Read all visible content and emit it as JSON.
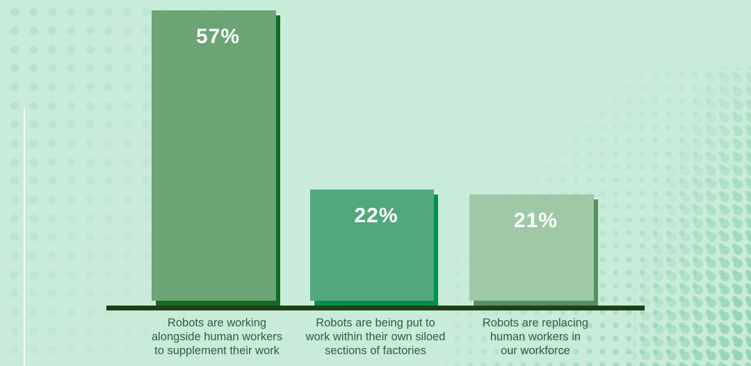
{
  "chart_data": {
    "type": "bar",
    "title": "",
    "xlabel": "",
    "ylabel": "",
    "categories": [
      "Robots are working alongside human workers to supplement their work",
      "Robots are being put to work within their own siloed sections of factories",
      "Robots are replacing human workers in our workforce"
    ],
    "values": [
      57,
      22,
      21
    ],
    "value_labels": [
      "57%",
      "22%",
      "21%"
    ],
    "ylim": [
      0,
      57
    ],
    "legend": "none",
    "gridlines": "off",
    "baseline_axis": "bottom only"
  },
  "bars": [
    {
      "percent": "57%",
      "fill_color": "#166b22",
      "shadow_color": "#6ba475",
      "label_lines": [
        "Robots are working",
        "alongside human workers",
        "to supplement their work"
      ]
    },
    {
      "percent": "22%",
      "fill_color": "#00914e",
      "shadow_color": "#52a87a",
      "label_lines": [
        "Robots are being put to",
        "work within their own siloed",
        "sections of factories"
      ]
    },
    {
      "percent": "21%",
      "fill_color": "#569061",
      "shadow_color": "#9fc8a7",
      "label_lines": [
        "Robots are replacing",
        "human workers in",
        "our workforce"
      ]
    }
  ],
  "colors": {
    "background": "#c9ebda",
    "axis": "#1d4016",
    "label_text": "#2f5f3a",
    "percent_text": "#ffffff",
    "bar_border": "#eef8f1",
    "dots_left": "#b5e2ca",
    "dots_right": "#92d5af"
  }
}
